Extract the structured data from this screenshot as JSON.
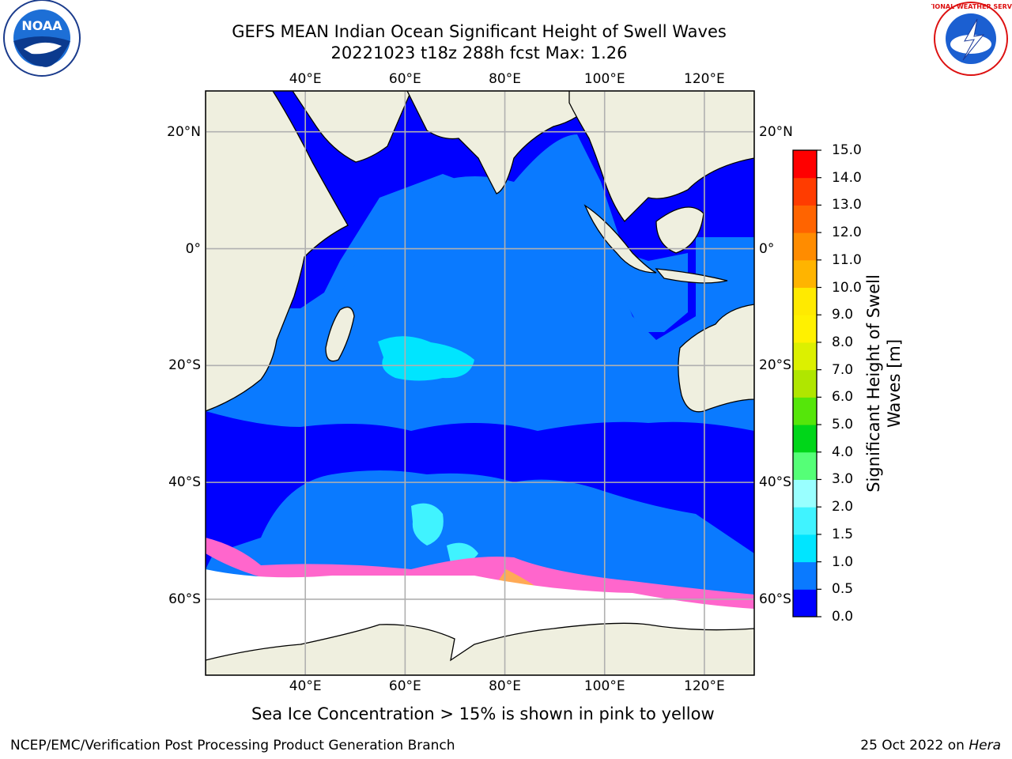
{
  "header": {
    "title_line1": "GEFS MEAN Indian Ocean Significant Height of Swell Waves",
    "title_line2": "20221023 t18z 288h fcst   Max: 1.26",
    "noaa_logo_text": "NOAA",
    "nws_logo_text": "NATIONAL WEATHER SERVICE"
  },
  "map": {
    "lon_labels": [
      "40°E",
      "60°E",
      "80°E",
      "100°E",
      "120°E"
    ],
    "lat_labels": [
      "20°N",
      "0°",
      "20°S",
      "40°S",
      "60°S"
    ],
    "lon_range": [
      20,
      130
    ],
    "lat_range": [
      -73,
      27
    ],
    "land_color": "#efefdf",
    "ice_colors": [
      "#ff66cc",
      "#ffaa55",
      "#ffe08a"
    ]
  },
  "colorbar": {
    "label_line1": "Significant Height of Swell",
    "label_line2": "Waves [m]",
    "ticks": [
      "0.0",
      "0.5",
      "1.0",
      "1.5",
      "2.0",
      "3.0",
      "4.0",
      "5.0",
      "6.0",
      "7.0",
      "8.0",
      "9.0",
      "10.0",
      "11.0",
      "12.0",
      "13.0",
      "14.0",
      "15.0"
    ],
    "colors": [
      "#0000ff",
      "#0a7aff",
      "#00e5ff",
      "#40f3ff",
      "#99ffff",
      "#55ff77",
      "#00d619",
      "#55e60a",
      "#b0e600",
      "#dcf000",
      "#fff100",
      "#ffea00",
      "#ffb400",
      "#ff8c00",
      "#ff6400",
      "#ff3c00",
      "#ff0000"
    ]
  },
  "footer": {
    "note": "Sea Ice Concentration > 15% is shown in pink to yellow",
    "left": "NCEP/EMC/Verification Post Processing Product Generation Branch",
    "right_date": "25 Oct 2022 on ",
    "right_host": "Hera"
  }
}
